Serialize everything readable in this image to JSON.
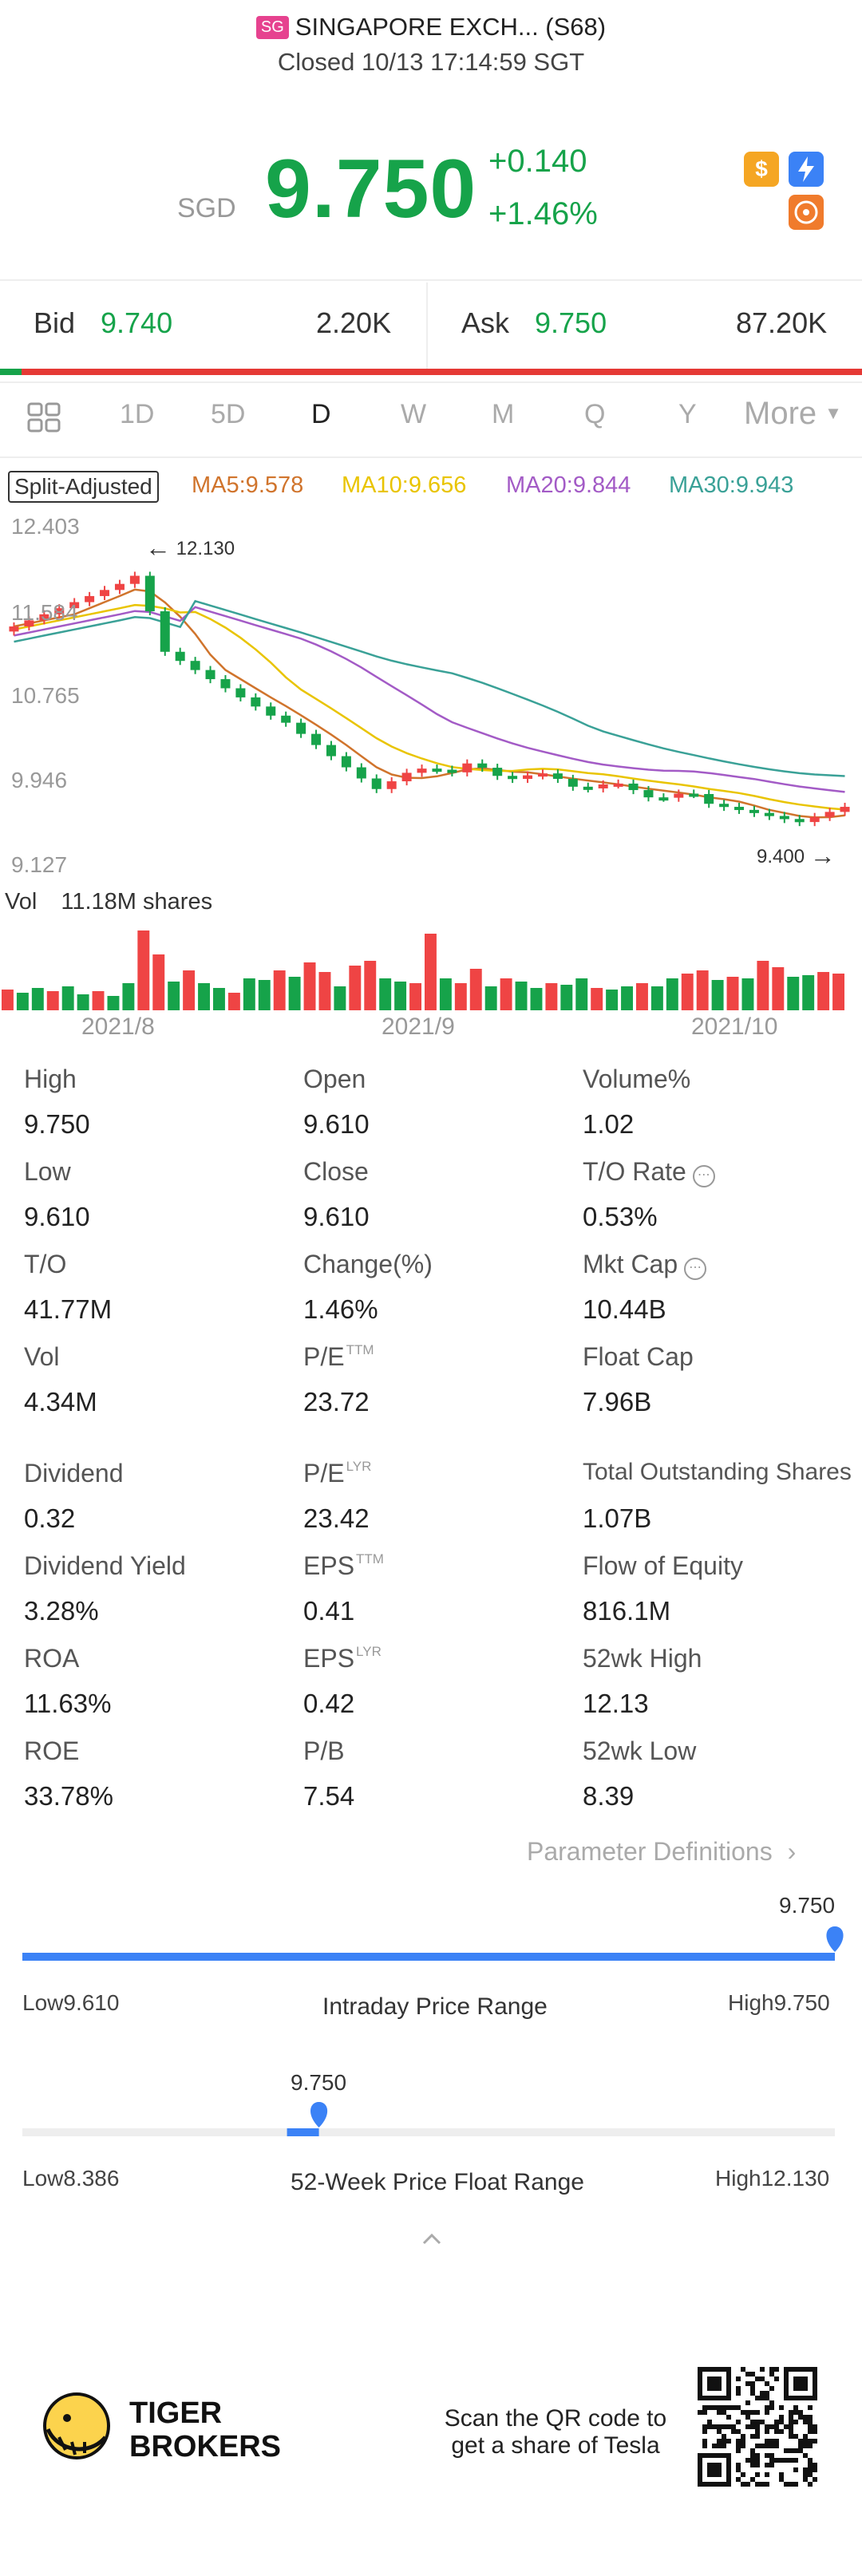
{
  "header": {
    "market_badge": "SG",
    "title": "SINGAPORE EXCH... (S68)",
    "status": "Closed 10/13 17:14:59 SGT"
  },
  "quote": {
    "currency": "SGD",
    "price": "9.750",
    "change": "+0.140",
    "change_pct": "+1.46%",
    "up_color": "#16a34a"
  },
  "icons": {
    "dollar": "dollar-icon",
    "flash": "flash-icon",
    "share": "share-icon"
  },
  "bid_ask": {
    "bid_label": "Bid",
    "bid_price": "9.740",
    "bid_size": "2.20K",
    "ask_label": "Ask",
    "ask_price": "9.750",
    "ask_size": "87.20K",
    "bid_fraction": 0.025
  },
  "tabs": [
    "1D",
    "5D",
    "D",
    "W",
    "M",
    "Q",
    "Y",
    "More"
  ],
  "active_tab": "D",
  "ma_legend": {
    "split": "Split-Adjusted",
    "ma5": "MA5:9.578",
    "ma10": "MA10:9.656",
    "ma20": "MA20:9.844",
    "ma30": "MA30:9.943"
  },
  "chart_data": {
    "type": "candlestick",
    "y_ticks": [
      "12.403",
      "11.584",
      "10.765",
      "9.946",
      "9.127"
    ],
    "ylim": [
      9.127,
      12.403
    ],
    "x_ticks": [
      "2021/8",
      "2021/9",
      "2021/10"
    ],
    "high_marker": "12.130",
    "low_marker": "9.400",
    "volume_label": "Vol",
    "volume_value": "11.18M shares",
    "colors": {
      "up": "#ef4444",
      "down": "#16a34a",
      "ma5": "#d0742c",
      "ma10": "#e9c400",
      "ma20": "#a35bc6",
      "ma30": "#3aa197"
    }
  },
  "stats": [
    [
      {
        "label": "High",
        "value": "9.750"
      },
      {
        "label": "Open",
        "value": "9.610"
      },
      {
        "label": "Volume%",
        "value": "1.02"
      }
    ],
    [
      {
        "label": "Low",
        "value": "9.610"
      },
      {
        "label": "Close",
        "value": "9.610"
      },
      {
        "label": "T/O Rate",
        "value": "0.53%"
      }
    ],
    [
      {
        "label": "T/O",
        "value": "41.77M"
      },
      {
        "label": "Change(%)",
        "value": "1.46%"
      },
      {
        "label": "Mkt Cap",
        "value": "10.44B"
      }
    ],
    [
      {
        "label": "Vol",
        "value": "4.34M"
      },
      {
        "label": "P/E",
        "value": "23.72"
      },
      {
        "label": "Float Cap",
        "value": "7.96B"
      }
    ],
    [
      {
        "label": "Dividend",
        "value": "0.32"
      },
      {
        "label": "P/E",
        "value": "23.42"
      },
      {
        "label": "Total Outstanding Shares",
        "value": "1.07B"
      }
    ],
    [
      {
        "label": "Dividend Yield",
        "value": "3.28%"
      },
      {
        "label": "EPS",
        "value": "0.41"
      },
      {
        "label": "Flow of Equity",
        "value": "816.1M"
      }
    ],
    [
      {
        "label": "ROA",
        "value": "11.63%"
      },
      {
        "label": "EPS",
        "value": "0.42"
      },
      {
        "label": "52wk High",
        "value": "12.13"
      }
    ],
    [
      {
        "label": "ROE",
        "value": "33.78%"
      },
      {
        "label": "P/B",
        "value": "7.54"
      },
      {
        "label": "52wk Low",
        "value": "8.39"
      }
    ]
  ],
  "superscripts": {
    "ttm": "TTM",
    "lyr": "LYR"
  },
  "param_definitions": "Parameter Definitions",
  "intraday": {
    "current": "9.750",
    "low": "Low9.610",
    "high": "High9.750",
    "title": "Intraday Price Range",
    "position_fraction": 1.0
  },
  "week52": {
    "current": "9.750",
    "low": "Low8.386",
    "high": "High12.130",
    "title": "52-Week Price Float Range",
    "position_fraction": 0.365
  },
  "footer": {
    "brand_line1": "TIGER",
    "brand_line2": "BROKERS",
    "scan_text": "Scan the QR code to get a share of Tesla"
  }
}
